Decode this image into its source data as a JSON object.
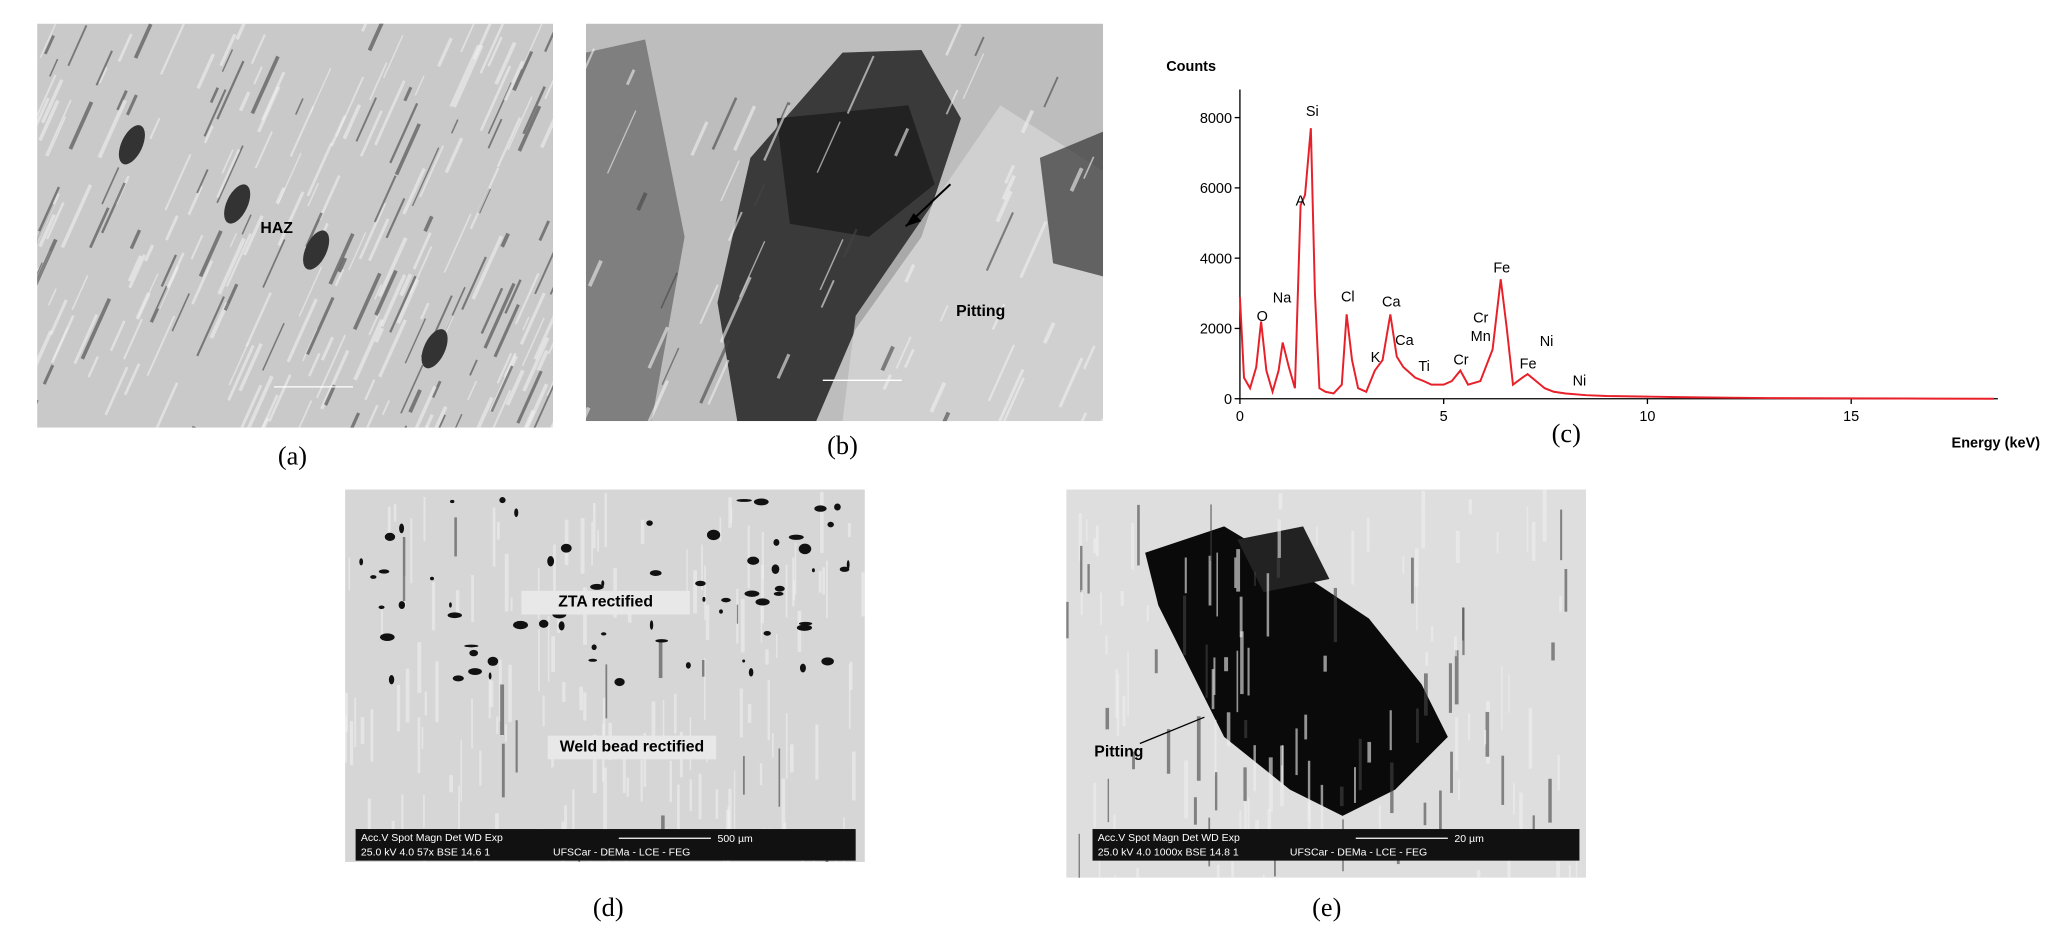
{
  "panels": [
    {
      "label": "(a)",
      "annotations": [
        "HAZ"
      ]
    },
    {
      "label": "(b)",
      "annotations": [
        "Pitting"
      ]
    },
    {
      "label": "(c)"
    },
    {
      "label": "(d)",
      "annotations": [
        "ZTA rectified",
        "Weld bead rectified"
      ],
      "scale_bar": {
        "header": "Acc.V  Spot Magn    Det  WD  Exp",
        "settings": "25.0 kV 4.0   57x     BSE  14.6  1",
        "length": "500 µm",
        "lab": "UFSCar - DEMa - LCE - FEG"
      }
    },
    {
      "label": "(e)",
      "annotations": [
        "Pitting"
      ],
      "scale_bar": {
        "header": "Acc.V  Spot Magn    Det  WD  Exp",
        "settings": "25.0 kV 4.0  1000x   BSE  14.8  1",
        "length": "20 µm",
        "lab": "UFSCar - DEMa - LCE - FEG"
      }
    }
  ],
  "chart_data": {
    "type": "line",
    "y_label": "Counts",
    "x_label": "Energy (keV)",
    "x": [
      0,
      0.1,
      0.25,
      0.4,
      0.52,
      0.65,
      0.8,
      0.95,
      1.05,
      1.2,
      1.35,
      1.49,
      1.6,
      1.74,
      1.84,
      1.95,
      2.1,
      2.3,
      2.5,
      2.62,
      2.75,
      2.9,
      3.1,
      3.31,
      3.5,
      3.69,
      3.85,
      4.01,
      4.3,
      4.51,
      4.7,
      5.0,
      5.2,
      5.41,
      5.6,
      5.9,
      6.2,
      6.4,
      6.55,
      6.7,
      6.93,
      7.06,
      7.48,
      7.7,
      8.0,
      8.5,
      9,
      10,
      11,
      12,
      13,
      15,
      17,
      18.5
    ],
    "series": [
      {
        "color": "#e8202a",
        "values": [
          2900,
          600,
          300,
          900,
          2200,
          800,
          200,
          800,
          1600,
          900,
          300,
          5500,
          5800,
          7700,
          3000,
          300,
          200,
          150,
          400,
          2400,
          1100,
          300,
          200,
          800,
          1100,
          2400,
          1200,
          900,
          600,
          500,
          400,
          400,
          500,
          800,
          400,
          500,
          1400,
          3400,
          2000,
          400,
          600,
          700,
          300,
          200,
          150,
          100,
          80,
          60,
          40,
          30,
          20,
          10,
          5,
          0
        ]
      }
    ],
    "xlim": [
      0,
      18.6
    ],
    "ylim": [
      0,
      8800
    ],
    "xticks": [
      0,
      5,
      10,
      15
    ],
    "yticks": [
      0,
      2000,
      4000,
      6000,
      8000
    ],
    "peak_labels": [
      "O",
      "Na",
      "A",
      "Si",
      "Cl",
      "K",
      "Ca",
      "Ca",
      "Ti",
      "Cr",
      "Cr",
      "Mn",
      "Fe",
      "Fe",
      "Ni",
      "Ni"
    ]
  }
}
